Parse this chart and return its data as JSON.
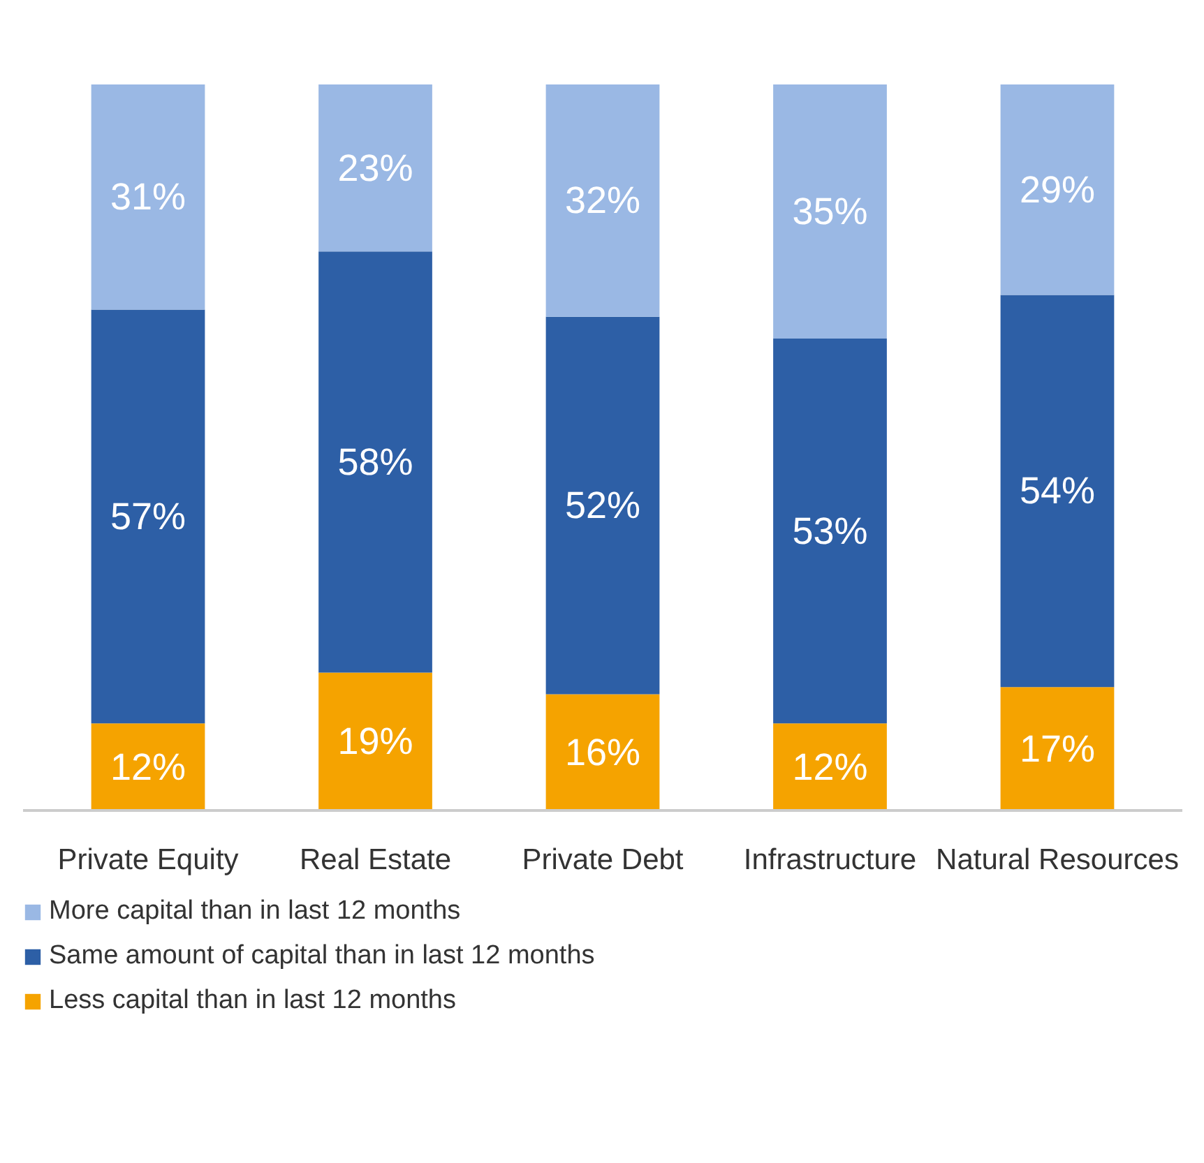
{
  "chart_data": {
    "type": "bar",
    "stacked": true,
    "categories": [
      "Private Equity",
      "Real Estate",
      "Private Debt",
      "Infrastructure",
      "Natural Resources"
    ],
    "series": [
      {
        "name": "Less capital than in last 12 months",
        "color": "#f5a300",
        "values": [
          12,
          19,
          16,
          12,
          17
        ],
        "value_labels": [
          "12%",
          "19%",
          "16%",
          "12%",
          "17%"
        ]
      },
      {
        "name": "Same amount of capital than in last 12 months",
        "color": "#2d5fa6",
        "values": [
          57,
          58,
          52,
          53,
          54
        ],
        "value_labels": [
          "57%",
          "58%",
          "52%",
          "53%",
          "54%"
        ]
      },
      {
        "name": "More capital than in last 12 months",
        "color": "#9ab8e4",
        "values": [
          31,
          23,
          32,
          35,
          29
        ],
        "value_labels": [
          "31%",
          "23%",
          "32%",
          "35%",
          "29%"
        ]
      }
    ],
    "tick_labels": "x",
    "legend": "bottom"
  }
}
